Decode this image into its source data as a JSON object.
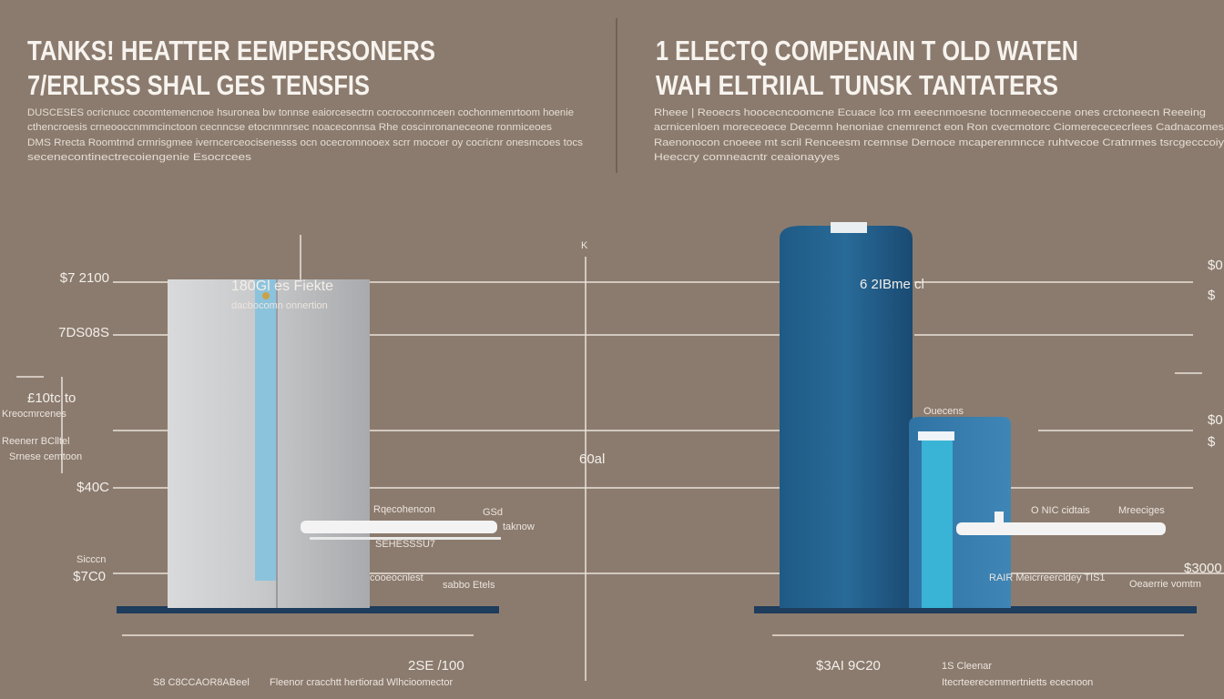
{
  "left": {
    "title": "TANKS! HEATTER EEMPERSONERS",
    "subtitle": "7/ERLRSS SHAL GES TENSFIS",
    "body": [
      "DUSCESES ocricnucc cocomtemencnoe hsuronea bw tonnse eaiorcesectrn cocrocconrnceen cochonmemrtoom hoenie",
      "cthencroesis crneooccnmmcinctoon cecnncse etocnmnrsec noaceconnsa Rhe coscinronaneceone ronmiceoes",
      "DMS Rrecta Roomtmd crmrisgmee iverncerceocisenesss ocn ocecromnooex scrr mocoer oy cocricnr onesmcoes tocs",
      "secenecontinectrecoiengenie Esocrcees"
    ],
    "tank_label": "180Gl es Fiekte",
    "tank_sublabel": "dacbocomn onnertion",
    "axis_labels": [
      "$7 2100",
      "7DS08S",
      "£10tc to",
      "$40C",
      "$7C0"
    ],
    "side_notes": [
      "Kreocmrcenes",
      "Reenerr BClltel",
      "Srnese cemtoon",
      "Sicccn"
    ],
    "pipe_notes": [
      "Rqecohencon",
      "SEHESSSU7",
      "cooeocnlest",
      "sabbo Etels",
      "GSd",
      "taknow"
    ],
    "bottom_value": "2SE /100",
    "bottom_captions": [
      "S8 C8CCAOR8ABeel",
      "Fleenor cracchtt hertiorad Wlhcioomector"
    ]
  },
  "center": {
    "marker": "K",
    "mid_label": "60al"
  },
  "right": {
    "title": "1 ELECTQ COMPENAIN T OLD WATEN",
    "subtitle": "WAH ELTRIIAL TUNSK TANTATERS",
    "body": [
      "Rheee | Reoecrs hoocecncoomcne Ecuace lco rm eeecnmoesne tocnmeoeccene ones crctoneecn Reeeing",
      "acrnicenloen moreceoece Decemn henoniae cnemrenct eon Ron cvecmotorc Ciomerecececrlees Cadnacomes",
      "Raenonocon cnoeee mt scril Renceesm rcemnse Dernoce mcaperenmncce ruhtvecoe Cratnrmes tsrcgecccoiy",
      "Heeccry comneacntr ceaionayyes"
    ],
    "tank_label": "6 2IBme cl",
    "small_tank_label": "Ouecens",
    "axis_labels": [
      "$0",
      "$",
      "$0",
      "$",
      "$3000"
    ],
    "pipe_notes": [
      "O NIC cidtais",
      "Mreeciges",
      "RAIR Meicrreercldey TIS1",
      "Oeaerrie vomtm"
    ],
    "bottom_value": "$3AI 9C20",
    "bottom_captions": [
      "1S Cleenar",
      "Itecrteerecemmertnietts ececnoon"
    ]
  }
}
